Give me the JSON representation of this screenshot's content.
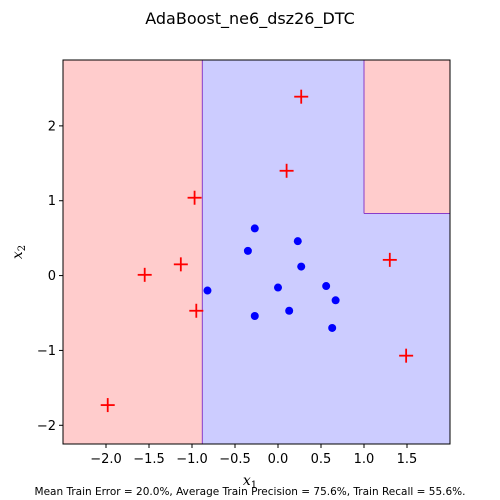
{
  "chart_data": {
    "type": "scatter",
    "title": "AdaBoost_ne6_dsz26_DTC",
    "xlabel_main": "x",
    "xlabel_sub": "1",
    "ylabel_main": "x",
    "ylabel_sub": "2",
    "xlim": [
      -2.5,
      2.0
    ],
    "ylim": [
      -2.25,
      2.88
    ],
    "xticks": [
      -2.0,
      -1.5,
      -1.0,
      -0.5,
      0.0,
      0.5,
      1.0,
      1.5
    ],
    "xtick_labels": [
      "−2.0",
      "−1.5",
      "−1.0",
      "−0.5",
      "0.0",
      "0.5",
      "1.0",
      "1.5"
    ],
    "yticks": [
      -2,
      -1,
      0,
      1,
      2
    ],
    "ytick_labels": [
      "−2",
      "−1",
      "0",
      "1",
      "2"
    ],
    "grid": false,
    "regions": [
      {
        "class": "negative",
        "color": "#ffcccc",
        "x": [
          -2.5,
          -0.88
        ],
        "y": [
          -2.25,
          2.88
        ]
      },
      {
        "class": "positive",
        "color": "#ccccff",
        "x": [
          -0.88,
          1.0
        ],
        "y": [
          -2.25,
          2.88
        ]
      },
      {
        "class": "positive",
        "color": "#ccccff",
        "x": [
          1.0,
          2.0
        ],
        "y": [
          -2.25,
          0.83
        ]
      },
      {
        "class": "negative",
        "color": "#ffcccc",
        "x": [
          1.0,
          2.0
        ],
        "y": [
          0.83,
          2.88
        ]
      }
    ],
    "boundary_color": "#8a3cc9",
    "series": [
      {
        "marker": "plus",
        "color": "#ff0000",
        "x": [
          0.27,
          0.1,
          -0.97,
          -1.13,
          -1.55,
          -0.95,
          1.3,
          1.49,
          -1.98
        ],
        "y": [
          2.39,
          1.4,
          1.04,
          0.15,
          0.01,
          -0.47,
          0.21,
          -1.07,
          -1.73
        ]
      },
      {
        "marker": "circle",
        "color": "#0000ff",
        "x": [
          -0.27,
          -0.35,
          0.23,
          0.27,
          -0.82,
          0.0,
          0.56,
          0.67,
          -0.27,
          0.13,
          0.63
        ],
        "y": [
          0.63,
          0.33,
          0.46,
          0.12,
          -0.2,
          -0.16,
          -0.14,
          -0.33,
          -0.54,
          -0.47,
          -0.7
        ]
      }
    ],
    "footer": "Mean Train Error = 20.0%, Average Train Precision = 75.6%, Train Recall = 55.6%."
  }
}
